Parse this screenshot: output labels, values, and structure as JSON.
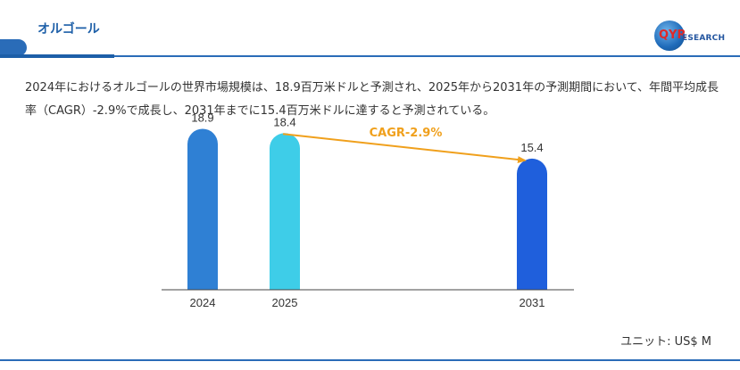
{
  "header": {
    "title": "オルゴール",
    "logo_text": "QYRESEARCH",
    "logo_qy": "QYR",
    "logo_research": "ESEARCH"
  },
  "description": "2024年におけるオルゴールの世界市場規模は、18.9百万米ドルと予測され、2025年から2031年の予測期間において、年間平均成長率（CAGR）-2.9%で成長し、2031年までに15.4百万米ドルに達すると予測されている。",
  "unit_label": "ユニット: US$ M",
  "colors": {
    "accent": "#2a6cb8",
    "bar_2024": "#2f80d4",
    "bar_2025": "#3ecde8",
    "bar_2031": "#1f5fdc",
    "cagr": "#f0a01c"
  },
  "chart_data": {
    "type": "bar",
    "categories": [
      "2024",
      "2025",
      "2031"
    ],
    "values": [
      18.9,
      18.4,
      15.4
    ],
    "value_labels": [
      "18.9",
      "18.4",
      "15.4"
    ],
    "annotation": "CAGR-2.9%",
    "ylim": [
      0,
      20
    ],
    "grid": false,
    "legend": "none"
  }
}
